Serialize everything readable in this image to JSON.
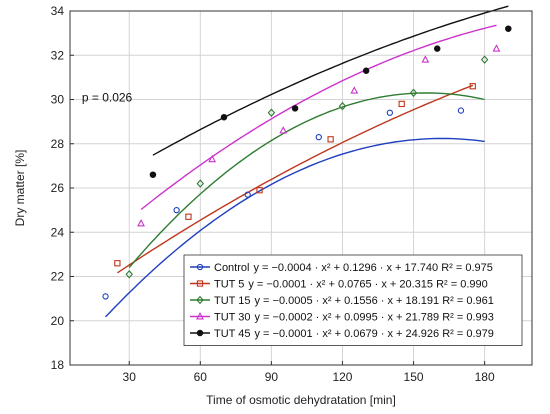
{
  "chart_data": {
    "type": "scatter",
    "xlabel": "Time of osmotic dehydratation [min]",
    "ylabel": "Dry matter [%]",
    "xlim": [
      5,
      200
    ],
    "ylim": [
      18,
      34
    ],
    "xticks": [
      30,
      60,
      90,
      120,
      150,
      180
    ],
    "yticks": [
      18,
      20,
      22,
      24,
      26,
      28,
      30,
      32,
      34
    ],
    "grid": true,
    "legend_position": "bottom-right",
    "annotation": "p = 0.026",
    "series": [
      {
        "name": "Control",
        "equation": "y = −0.0004 · x² + 0.1296 · x + 17.740 R² = 0.975",
        "color": "#1f3fbf",
        "marker": "circle",
        "coefficients": [
          -0.0004,
          0.1296,
          17.74
        ],
        "fit_range": [
          20,
          180
        ],
        "points": [
          [
            20,
            21.1
          ],
          [
            50,
            25.0
          ],
          [
            80,
            25.7
          ],
          [
            110,
            28.3
          ],
          [
            140,
            29.4
          ],
          [
            170,
            29.5
          ]
        ]
      },
      {
        "name": "TUT 5",
        "equation": "y = −0.0001 · x² + 0.0765 · x + 20.315 R² = 0.990",
        "color": "#c0361c",
        "marker": "square",
        "coefficients": [
          -0.0001,
          0.0765,
          20.315
        ],
        "fit_range": [
          25,
          175
        ],
        "points": [
          [
            25,
            22.6
          ],
          [
            55,
            24.7
          ],
          [
            85,
            25.9
          ],
          [
            115,
            28.2
          ],
          [
            145,
            29.8
          ],
          [
            175,
            30.6
          ]
        ]
      },
      {
        "name": "TUT 15",
        "equation": "y = −0.0005 · x² + 0.1556 · x + 18.191 R² = 0.961",
        "color": "#2e7d32",
        "marker": "diamond",
        "coefficients": [
          -0.0005,
          0.1556,
          18.191
        ],
        "fit_range": [
          30,
          180
        ],
        "points": [
          [
            30,
            22.1
          ],
          [
            60,
            26.2
          ],
          [
            90,
            29.4
          ],
          [
            120,
            29.7
          ],
          [
            150,
            30.3
          ],
          [
            180,
            31.8
          ]
        ]
      },
      {
        "name": "TUT 30",
        "equation": "y = −0.0002 · x² + 0.0995 · x + 21.789 R² = 0.993",
        "color": "#cc33cc",
        "marker": "triangle",
        "coefficients": [
          -0.0002,
          0.0995,
          21.789
        ],
        "fit_range": [
          35,
          185
        ],
        "points": [
          [
            35,
            24.4
          ],
          [
            65,
            27.3
          ],
          [
            95,
            28.6
          ],
          [
            125,
            30.4
          ],
          [
            155,
            31.8
          ],
          [
            185,
            32.3
          ]
        ]
      },
      {
        "name": "TUT 45",
        "equation": "y = −0.0001 · x² + 0.0679 · x + 24.926 R² = 0.979",
        "color": "#111111",
        "marker": "circle-filled",
        "coefficients": [
          -0.0001,
          0.0679,
          24.926
        ],
        "fit_range": [
          40,
          190
        ],
        "points": [
          [
            40,
            26.6
          ],
          [
            70,
            29.2
          ],
          [
            100,
            29.6
          ],
          [
            130,
            31.3
          ],
          [
            160,
            32.3
          ],
          [
            190,
            33.2
          ]
        ]
      }
    ]
  }
}
